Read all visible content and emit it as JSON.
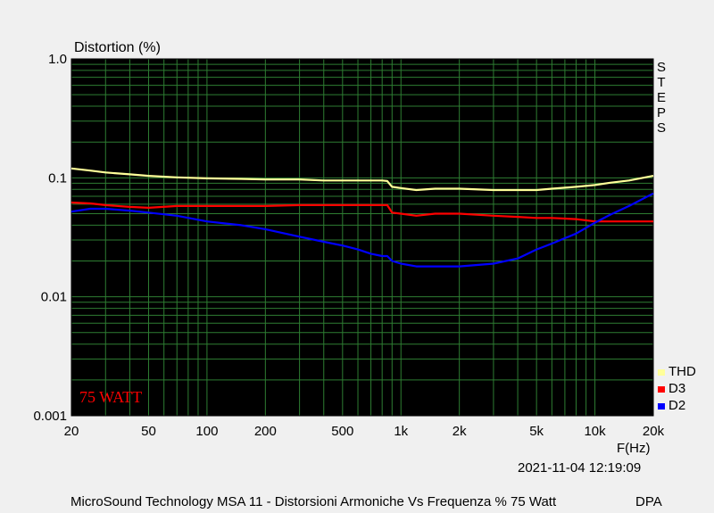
{
  "chart_data": {
    "type": "line",
    "ylabel": "Distortion (%)",
    "xlabel": "F(Hz)",
    "x_scale": "log",
    "y_scale": "log",
    "xlim": [
      20,
      20000
    ],
    "ylim": [
      0.001,
      1.0
    ],
    "x_ticks": [
      {
        "value": 20,
        "label": "20"
      },
      {
        "value": 50,
        "label": "50"
      },
      {
        "value": 100,
        "label": "100"
      },
      {
        "value": 200,
        "label": "200"
      },
      {
        "value": 500,
        "label": "500"
      },
      {
        "value": 1000,
        "label": "1k"
      },
      {
        "value": 2000,
        "label": "2k"
      },
      {
        "value": 5000,
        "label": "5k"
      },
      {
        "value": 10000,
        "label": "10k"
      },
      {
        "value": 20000,
        "label": "20k"
      }
    ],
    "y_ticks": [
      {
        "value": 1.0,
        "label": "1.0"
      },
      {
        "value": 0.1,
        "label": "0.1"
      },
      {
        "value": 0.01,
        "label": "0.01"
      },
      {
        "value": 0.001,
        "label": "0.001"
      }
    ],
    "grid": true,
    "legend_position": "bottom-right",
    "series": [
      {
        "name": "THD",
        "color": "#ffff99",
        "x": [
          20,
          25,
          30,
          40,
          50,
          70,
          100,
          150,
          200,
          300,
          400,
          500,
          600,
          700,
          800,
          850,
          900,
          1000,
          1200,
          1500,
          2000,
          3000,
          4000,
          5000,
          6000,
          8000,
          10000,
          12000,
          15000,
          20000
        ],
        "y": [
          0.12,
          0.115,
          0.111,
          0.107,
          0.104,
          0.101,
          0.099,
          0.098,
          0.097,
          0.097,
          0.095,
          0.095,
          0.095,
          0.095,
          0.095,
          0.094,
          0.084,
          0.082,
          0.079,
          0.081,
          0.081,
          0.079,
          0.079,
          0.079,
          0.081,
          0.084,
          0.087,
          0.091,
          0.095,
          0.104
        ]
      },
      {
        "name": "D3",
        "color": "#ff0000",
        "x": [
          20,
          25,
          30,
          40,
          50,
          70,
          100,
          150,
          200,
          300,
          400,
          500,
          600,
          700,
          800,
          850,
          900,
          1000,
          1200,
          1500,
          2000,
          3000,
          4000,
          5000,
          6000,
          8000,
          10000,
          12000,
          15000,
          20000
        ],
        "y": [
          0.062,
          0.061,
          0.059,
          0.057,
          0.056,
          0.058,
          0.058,
          0.058,
          0.058,
          0.059,
          0.059,
          0.059,
          0.059,
          0.059,
          0.059,
          0.059,
          0.051,
          0.05,
          0.048,
          0.05,
          0.05,
          0.048,
          0.047,
          0.046,
          0.046,
          0.045,
          0.043,
          0.043,
          0.043,
          0.043
        ]
      },
      {
        "name": "D2",
        "color": "#0000ff",
        "x": [
          20,
          25,
          30,
          40,
          50,
          70,
          100,
          150,
          200,
          300,
          400,
          500,
          600,
          700,
          800,
          850,
          900,
          1000,
          1200,
          1500,
          2000,
          3000,
          4000,
          5000,
          6000,
          8000,
          10000,
          12000,
          15000,
          20000
        ],
        "y": [
          0.052,
          0.055,
          0.055,
          0.053,
          0.051,
          0.048,
          0.043,
          0.04,
          0.037,
          0.032,
          0.029,
          0.027,
          0.025,
          0.023,
          0.022,
          0.022,
          0.02,
          0.019,
          0.018,
          0.018,
          0.018,
          0.019,
          0.021,
          0.025,
          0.028,
          0.034,
          0.042,
          0.049,
          0.058,
          0.074
        ]
      }
    ]
  },
  "side_text": [
    "S",
    "T",
    "E",
    "P",
    "S"
  ],
  "annotation": {
    "text": "75 WATT",
    "color": "#ff0000"
  },
  "timestamp": "2021-11-04 12:19:09",
  "footer": {
    "caption": "MicroSound Technology MSA 11 - Distorsioni Armoniche Vs Frequenza % 75 Watt",
    "tag": "DPA"
  },
  "colors": {
    "plot_background": "#000000",
    "grid": "#2e7d32",
    "page_background": "#f0f0f0"
  }
}
